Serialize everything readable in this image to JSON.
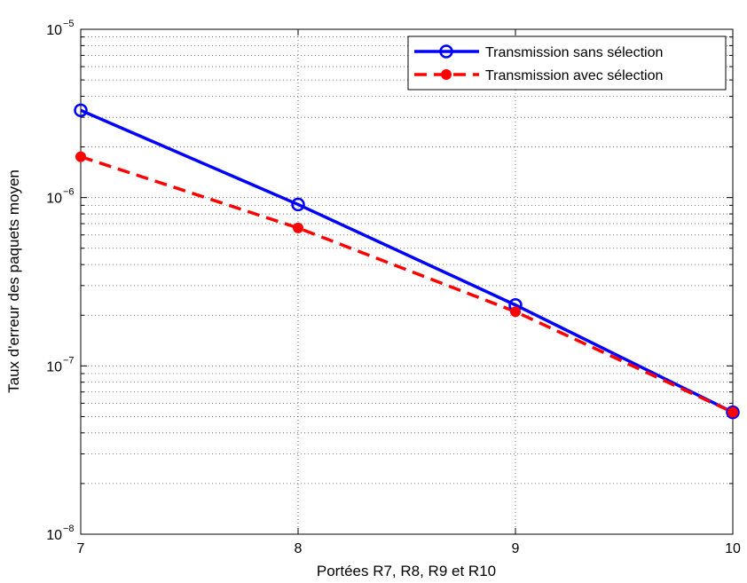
{
  "chart_data": {
    "type": "line",
    "xlabel": "Portées R7, R8, R9 et R10",
    "ylabel": "Taux d'erreur des paquets moyen",
    "x": [
      7,
      8,
      9,
      10
    ],
    "xlim": [
      7,
      10
    ],
    "ylim": [
      1e-08,
      1e-05
    ],
    "yscale": "log",
    "grid": true,
    "legend_position": "top-right",
    "x_ticks": [
      "7",
      "8",
      "9",
      "10"
    ],
    "y_ticks": [
      {
        "value": 1e-08,
        "base": "10",
        "exp": "−8"
      },
      {
        "value": 1e-07,
        "base": "10",
        "exp": "−7"
      },
      {
        "value": 1e-06,
        "base": "10",
        "exp": "−6"
      },
      {
        "value": 1e-05,
        "base": "10",
        "exp": "−5"
      }
    ],
    "series": [
      {
        "name": "Transmission sans sélection",
        "values": [
          3.3e-06,
          9.1e-07,
          2.3e-07,
          5.3e-08
        ],
        "color": "#0000ff",
        "line": "solid",
        "marker": "open-circle"
      },
      {
        "name": "Transmission avec sélection",
        "values": [
          1.75e-06,
          6.6e-07,
          2.1e-07,
          5.3e-08
        ],
        "color": "#ff0000",
        "line": "dashed",
        "marker": "filled-dot"
      }
    ]
  }
}
